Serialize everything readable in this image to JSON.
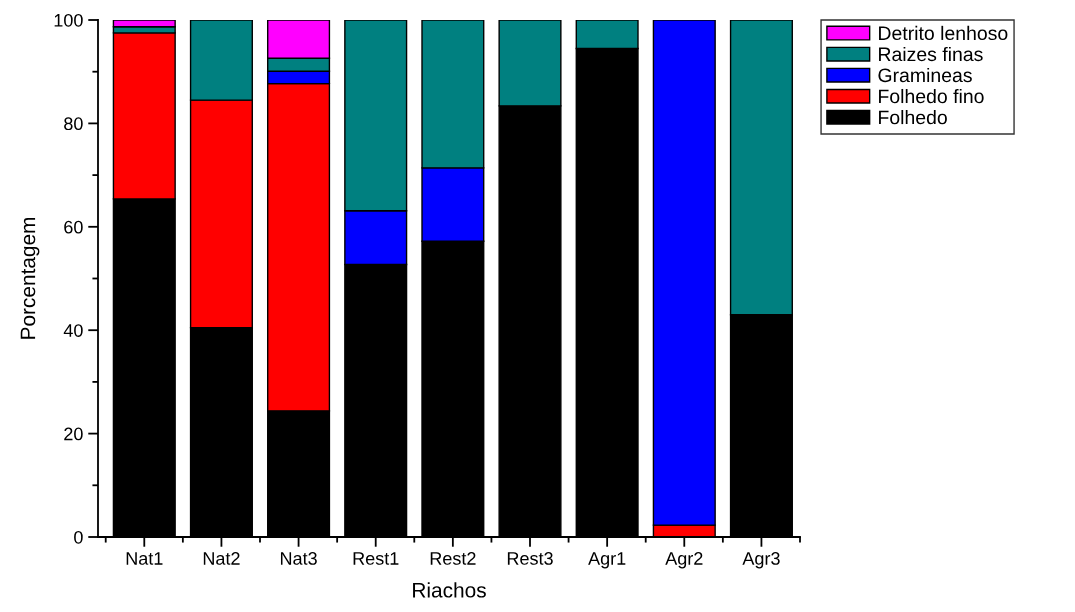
{
  "chart_data": {
    "type": "bar",
    "stacked": true,
    "xlabel": "Riachos",
    "ylabel": "Porcentagem",
    "categories": [
      "Nat1",
      "Nat2",
      "Nat3",
      "Rest1",
      "Rest2",
      "Rest3",
      "Agr1",
      "Agr2",
      "Agr3"
    ],
    "series": [
      {
        "name": "Folhedo",
        "color": "#000000",
        "values": [
          65.4,
          40.5,
          24.4,
          52.7,
          57.2,
          83.4,
          94.5,
          null,
          43.0
        ]
      },
      {
        "name": "Folhedo fino",
        "color": "#ff0000",
        "values": [
          32.1,
          44.0,
          63.3,
          null,
          null,
          null,
          null,
          2.3,
          null
        ]
      },
      {
        "name": "Gramineas",
        "color": "#0000ff",
        "values": [
          null,
          null,
          2.4,
          10.4,
          14.2,
          null,
          null,
          97.7,
          null
        ]
      },
      {
        "name": "Raizes finas",
        "color": "#008080",
        "values": [
          1.2,
          15.5,
          2.5,
          36.9,
          28.6,
          16.6,
          5.5,
          null,
          57.0
        ]
      },
      {
        "name": "Detrito lenhoso",
        "color": "#ff00ff",
        "values": [
          1.3,
          null,
          7.4,
          null,
          null,
          null,
          null,
          null,
          null
        ]
      }
    ],
    "ylim": [
      0,
      100
    ],
    "yticks": [
      0,
      {
        "value": 10,
        "label": null
      },
      20,
      {
        "value": 30,
        "label": null
      },
      40,
      {
        "value": 50,
        "label": null
      },
      60,
      {
        "value": 70,
        "label": null
      },
      80,
      {
        "value": 90,
        "label": null
      },
      100
    ],
    "legend": "top right",
    "grid": false
  }
}
